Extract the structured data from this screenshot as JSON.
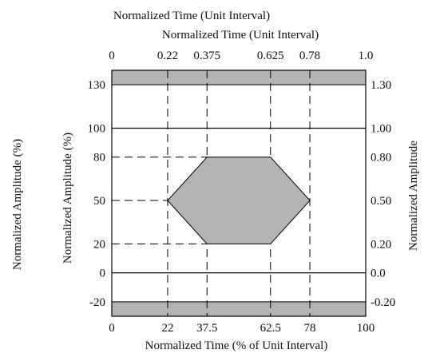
{
  "chart_data": {
    "type": "area",
    "title": "",
    "top_title_outer": "Normalized Time (Unit Interval)",
    "top_title_inner": "Normalized Time (Unit Interval)",
    "xlabel_bottom": "Normalized Time (% of Unit Interval)",
    "ylabel_left": "Normalized Amplitude (%)",
    "ylabel_left_outer": "Normalized Amplitude (%)",
    "ylabel_right": "Normalized Amplitude",
    "xlim": [
      0,
      100
    ],
    "ylim": [
      -30,
      140
    ],
    "x_ticks_bottom": [
      {
        "value": 0,
        "label": "0"
      },
      {
        "value": 22,
        "label": "22"
      },
      {
        "value": 37.5,
        "label": "37.5"
      },
      {
        "value": 62.5,
        "label": "62.5"
      },
      {
        "value": 78,
        "label": "78"
      },
      {
        "value": 100,
        "label": "100"
      }
    ],
    "x_ticks_top": [
      {
        "value": 0,
        "label": "0"
      },
      {
        "value": 22,
        "label": "0.22"
      },
      {
        "value": 37.5,
        "label": "0.375"
      },
      {
        "value": 62.5,
        "label": "0.625"
      },
      {
        "value": 78,
        "label": "0.78"
      },
      {
        "value": 100,
        "label": "1.0"
      }
    ],
    "y_ticks_left": [
      {
        "value": 130,
        "label": "130"
      },
      {
        "value": 100,
        "label": "100"
      },
      {
        "value": 80,
        "label": "80"
      },
      {
        "value": 50,
        "label": "50"
      },
      {
        "value": 20,
        "label": "20"
      },
      {
        "value": 0,
        "label": "0"
      },
      {
        "value": -20,
        "label": "-20"
      }
    ],
    "y_ticks_right": [
      {
        "value": 130,
        "label": "1.30"
      },
      {
        "value": 100,
        "label": "1.00"
      },
      {
        "value": 80,
        "label": "0.80"
      },
      {
        "value": 50,
        "label": "0.50"
      },
      {
        "value": 20,
        "label": "0.20"
      },
      {
        "value": 0,
        "label": "0.0"
      },
      {
        "value": -20,
        "label": "-0.20"
      }
    ],
    "upper_mask": {
      "y_from": 130,
      "y_to": 140
    },
    "lower_mask": {
      "y_from": -30,
      "y_to": -20
    },
    "solid_lines_y": [
      100,
      0
    ],
    "eye_polygon": [
      {
        "x": 22,
        "y": 50
      },
      {
        "x": 37.5,
        "y": 80
      },
      {
        "x": 62.5,
        "y": 80
      },
      {
        "x": 78,
        "y": 50
      },
      {
        "x": 62.5,
        "y": 20
      },
      {
        "x": 37.5,
        "y": 20
      }
    ],
    "dashed_verticals_x": [
      22,
      37.5,
      62.5,
      78
    ],
    "dashed_horizontals_y": [
      80,
      50,
      20
    ],
    "colors": {
      "mask": "#b3b3b3",
      "eye": "#b3b3b3",
      "line": "#000000",
      "background": "#ffffff"
    }
  }
}
